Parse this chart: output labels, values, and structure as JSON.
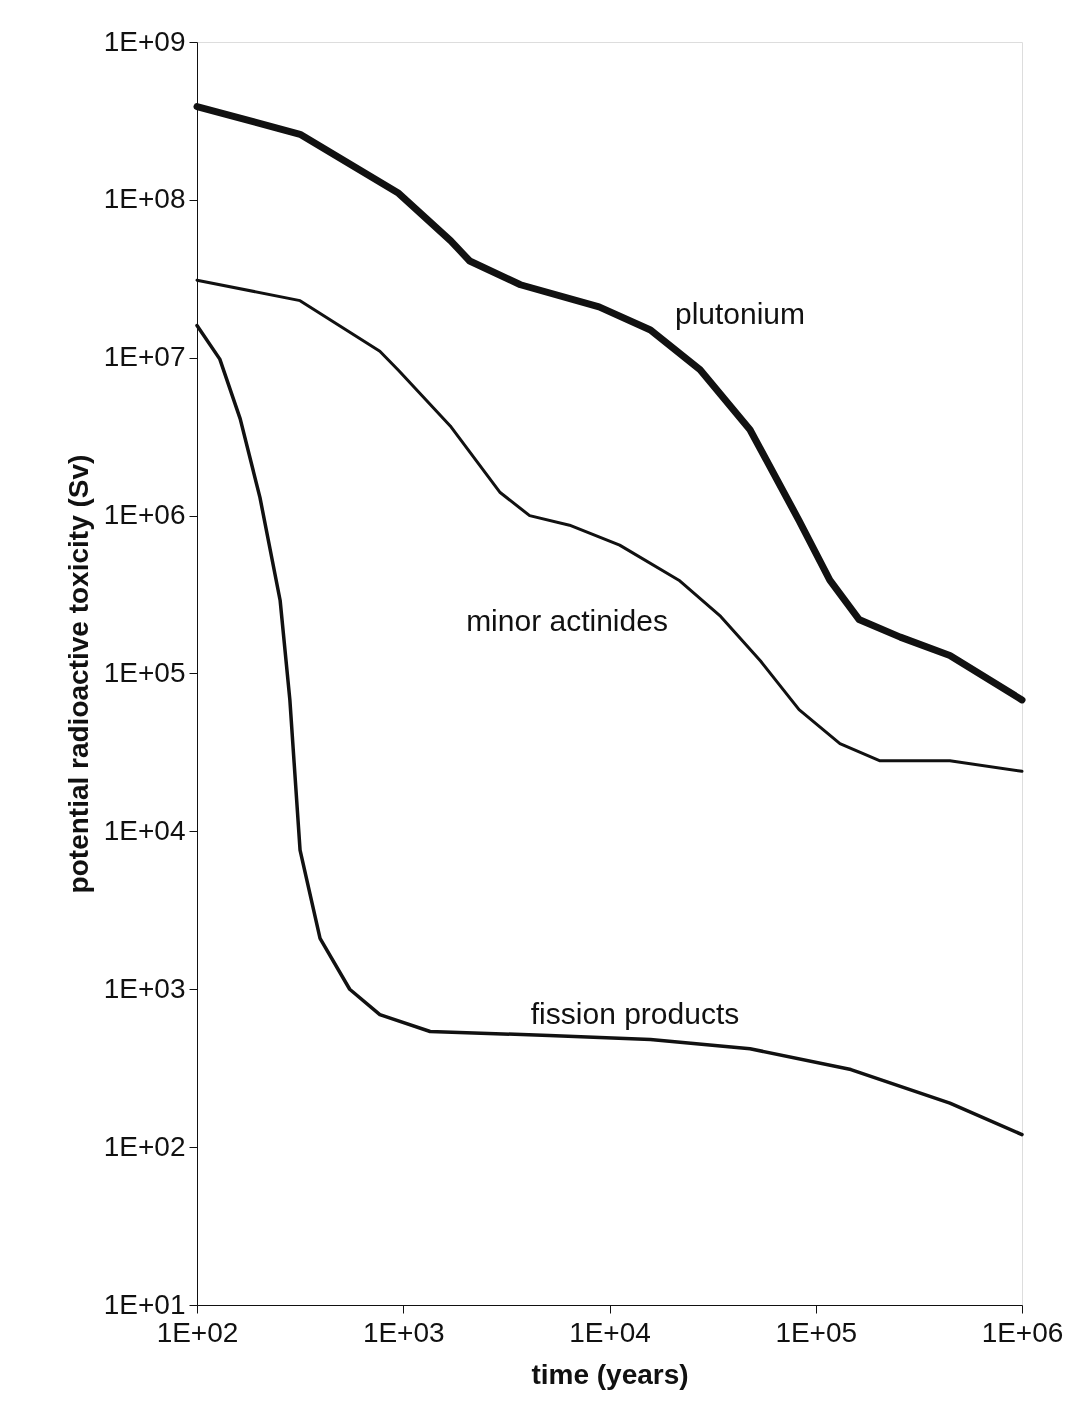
{
  "chart_data": {
    "type": "line",
    "xlabel": "time (years)",
    "ylabel": "potential radioactive toxicity (Sv)",
    "log": "xy",
    "grid": false,
    "marker": "none",
    "line_style": "solid",
    "xlim": [
      100,
      1000000
    ],
    "ylim": [
      10,
      1000000000
    ],
    "xticks": [
      {
        "value": 100,
        "label": "1E+02"
      },
      {
        "value": 1000,
        "label": "1E+03"
      },
      {
        "value": 10000,
        "label": "1E+04"
      },
      {
        "value": 100000,
        "label": "1E+05"
      },
      {
        "value": 1000000,
        "label": "1E+06"
      }
    ],
    "yticks": [
      {
        "value": 10,
        "label": "1E+01"
      },
      {
        "value": 100,
        "label": "1E+02"
      },
      {
        "value": 1000,
        "label": "1E+03"
      },
      {
        "value": 10000,
        "label": "1E+04"
      },
      {
        "value": 100000,
        "label": "1E+05"
      },
      {
        "value": 1000000,
        "label": "1E+06"
      },
      {
        "value": 10000000,
        "label": "1E+07"
      },
      {
        "value": 100000000,
        "label": "1E+08"
      },
      {
        "value": 1000000000,
        "label": "1E+09"
      }
    ],
    "series": [
      {
        "name": "plutonium",
        "color": "#111111",
        "x": [
          100,
          316,
          950,
          1700,
          2100,
          3700,
          8900,
          15800,
          27500,
          48000,
          83000,
          117000,
          162000,
          257000,
          447000,
          1000000
        ],
        "values": [
          390000000,
          260000000,
          110000000,
          55000000,
          41000000,
          29000000,
          21000000,
          15000000,
          8400000,
          3500000,
          930000,
          390000,
          220000,
          170000,
          130000,
          68000
        ]
      },
      {
        "name": "minor actinides",
        "color": "#111111",
        "x": [
          100,
          316,
          770,
          950,
          1690,
          2950,
          4100,
          6400,
          11200,
          21700,
          34600,
          54000,
          83000,
          131000,
          205000,
          447000,
          1000000
        ],
        "values": [
          31000000,
          23000000,
          11000000,
          8300000,
          3700000,
          1400000,
          1000000,
          870000,
          650000,
          390000,
          230000,
          120000,
          59000,
          36000,
          28000,
          28000,
          24000
        ]
      },
      {
        "name": "fission products",
        "color": "#111111",
        "x": [
          100,
          129,
          162,
          202,
          253,
          282,
          316,
          395,
          550,
          770,
          1350,
          5100,
          15800,
          48000,
          148000,
          447000,
          1000000
        ],
        "values": [
          16000000,
          9800000,
          4100000,
          1300000,
          290000,
          68000,
          7600,
          2100,
          1000,
          690,
          540,
          510,
          480,
          420,
          310,
          190,
          120
        ]
      }
    ]
  }
}
